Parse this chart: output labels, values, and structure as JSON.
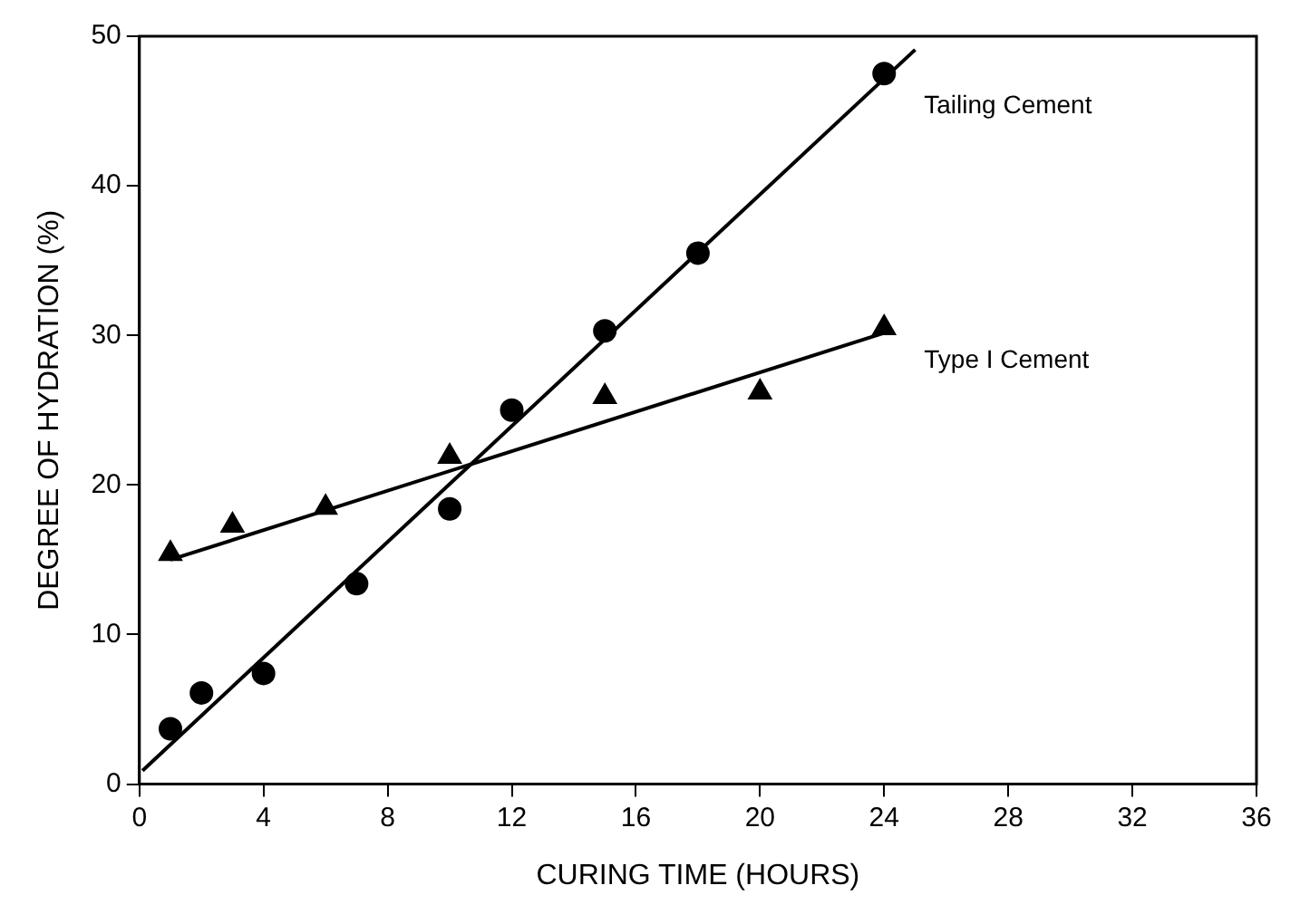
{
  "chart_data": {
    "type": "scatter",
    "xlabel": "CURING TIME (HOURS)",
    "ylabel": "DEGREE OF HYDRATION (%)",
    "xlim": [
      0,
      36
    ],
    "xticks": [
      0,
      4,
      8,
      12,
      16,
      20,
      24,
      28,
      32,
      36
    ],
    "ylim": [
      0,
      50
    ],
    "yticks": [
      0,
      10,
      20,
      30,
      40,
      50
    ],
    "grid": false,
    "legend": false,
    "series": [
      {
        "name": "Tailing Cement",
        "type": "scatter",
        "marker": "circle",
        "color": "#000000",
        "x": [
          1,
          2,
          4,
          7,
          10,
          12,
          15,
          18,
          24
        ],
        "values": [
          3.7,
          6.1,
          7.4,
          13.4,
          18.4,
          25.0,
          30.3,
          35.5,
          47.5
        ]
      },
      {
        "name": "Type I Cement",
        "type": "scatter",
        "marker": "triangle",
        "color": "#000000",
        "x": [
          1,
          3,
          6,
          10,
          15,
          20,
          24
        ],
        "values": [
          15.4,
          17.3,
          18.5,
          21.9,
          25.9,
          26.2,
          30.5
        ]
      },
      {
        "type": "line",
        "marker": "none",
        "color": "#000000",
        "x": [
          0.1,
          25
        ],
        "values": [
          0.9,
          49.1
        ]
      },
      {
        "type": "line",
        "marker": "none",
        "color": "#000000",
        "x": [
          1,
          24.2
        ],
        "values": [
          15.0,
          30.3
        ]
      }
    ]
  }
}
